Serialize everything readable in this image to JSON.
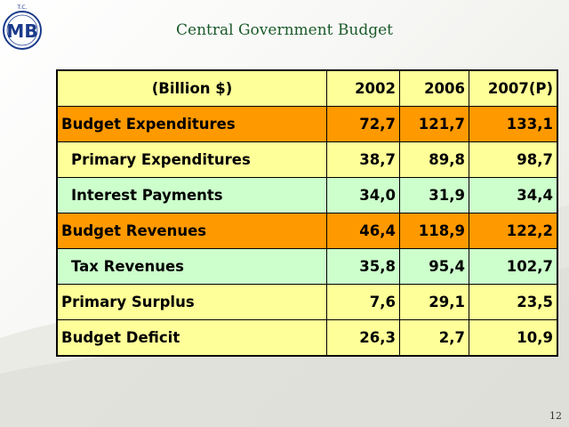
{
  "slide": {
    "title": "Central Government Budget",
    "page_number": "12"
  },
  "logo": {
    "letters": "MB",
    "top_text": "T.C."
  },
  "colors": {
    "header": "#ffff99",
    "orange": "#ff9900",
    "yellow": "#ffff99",
    "green": "#ccffcc",
    "title": "#1b5a2a"
  },
  "table": {
    "headers": [
      "(Billion $)",
      "2002",
      "2006",
      "2007(P)"
    ],
    "rows": [
      {
        "label": "Budget Expenditures",
        "values": [
          "72,7",
          "121,7",
          "133,1"
        ]
      },
      {
        "label": "Primary Expenditures",
        "values": [
          "38,7",
          "89,8",
          "98,7"
        ]
      },
      {
        "label": "Interest Payments",
        "values": [
          "34,0",
          "31,9",
          "34,4"
        ]
      },
      {
        "label": "Budget Revenues",
        "values": [
          "46,4",
          "118,9",
          "122,2"
        ]
      },
      {
        "label": "Tax Revenues",
        "values": [
          "35,8",
          "95,4",
          "102,7"
        ]
      },
      {
        "label": "Primary Surplus",
        "values": [
          "7,6",
          "29,1",
          "23,5"
        ]
      },
      {
        "label": "Budget Deficit",
        "values": [
          "26,3",
          "2,7",
          "10,9"
        ]
      }
    ]
  }
}
